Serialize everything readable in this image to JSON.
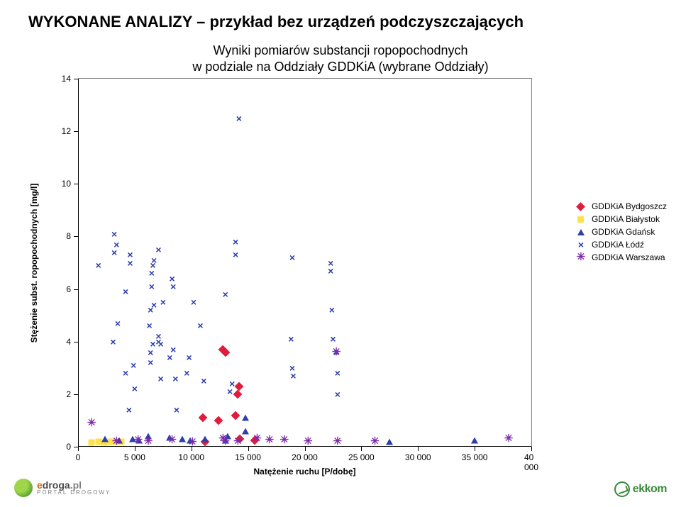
{
  "page_title": "WYKONANE ANALIZY – przykład bez urządzeń podczyszczających",
  "chart": {
    "type": "scatter",
    "title": "Wyniki pomiarów substancji ropopochodnych\nw podziale na Oddziały GDDKiA (wybrane Oddziały)",
    "xlabel": "Natężenie ruchu [P/dobę]",
    "ylabel": "Stężenie subst. ropopochodnych [mg/l]",
    "xlim": [
      0,
      40000
    ],
    "ylim": [
      0,
      14
    ],
    "xtick_step": 5000,
    "ytick_step": 2,
    "xtick_labels": [
      "0",
      "5 000",
      "10 000",
      "15 000",
      "20 000",
      "25 000",
      "30 000",
      "35 000",
      "40 000"
    ],
    "ytick_labels": [
      "0",
      "2",
      "4",
      "6",
      "8",
      "10",
      "12",
      "14"
    ],
    "background_color": "#ffffff",
    "border_color": "#808080",
    "axis_color": "#000000",
    "tick_fontsize": 12,
    "label_fontsize": 12,
    "title_fontsize": 18,
    "series": [
      {
        "name": "GDDKiA Bydgoszcz",
        "marker": "diamond",
        "color": "#e01b3c",
        "points": [
          [
            11000,
            1.1
          ],
          [
            11200,
            0.2
          ],
          [
            12400,
            1.0
          ],
          [
            12800,
            3.7
          ],
          [
            13000,
            3.6
          ],
          [
            13900,
            1.2
          ],
          [
            14100,
            2.0
          ],
          [
            14200,
            2.3
          ],
          [
            14300,
            0.3
          ],
          [
            15600,
            0.25
          ]
        ]
      },
      {
        "name": "GDDKiA Białystok",
        "marker": "square",
        "color": "#ffe24a",
        "points": [
          [
            1200,
            0.15
          ],
          [
            1800,
            0.18
          ],
          [
            2300,
            0.15
          ],
          [
            2900,
            0.2
          ],
          [
            3300,
            0.2
          ],
          [
            3800,
            0.2
          ]
        ]
      },
      {
        "name": "GDDKiA Gdańsk",
        "marker": "triangle",
        "color": "#2e3eaa",
        "points": [
          [
            2400,
            0.3
          ],
          [
            3600,
            0.25
          ],
          [
            4800,
            0.3
          ],
          [
            5400,
            0.25
          ],
          [
            6200,
            0.4
          ],
          [
            8100,
            0.35
          ],
          [
            9200,
            0.3
          ],
          [
            9900,
            0.25
          ],
          [
            11200,
            0.3
          ],
          [
            13000,
            0.25
          ],
          [
            13200,
            0.4
          ],
          [
            14800,
            1.1
          ],
          [
            14800,
            0.6
          ],
          [
            27500,
            0.2
          ],
          [
            35000,
            0.25
          ]
        ]
      },
      {
        "name": "GDDKiA Łódź",
        "marker": "x",
        "color": "#2e3eaa",
        "points": [
          [
            1800,
            6.9
          ],
          [
            3100,
            4.0
          ],
          [
            3200,
            7.4
          ],
          [
            3200,
            8.1
          ],
          [
            3400,
            7.7
          ],
          [
            3500,
            4.7
          ],
          [
            4200,
            2.8
          ],
          [
            4200,
            5.9
          ],
          [
            4500,
            1.4
          ],
          [
            4600,
            7.0
          ],
          [
            4600,
            7.3
          ],
          [
            4900,
            3.1
          ],
          [
            5000,
            2.2
          ],
          [
            6300,
            4.6
          ],
          [
            6400,
            3.2
          ],
          [
            6400,
            3.6
          ],
          [
            6400,
            5.2
          ],
          [
            6500,
            6.1
          ],
          [
            6500,
            6.6
          ],
          [
            6600,
            3.9
          ],
          [
            6600,
            6.9
          ],
          [
            6700,
            5.4
          ],
          [
            6700,
            7.1
          ],
          [
            7100,
            4.0
          ],
          [
            7100,
            4.2
          ],
          [
            7100,
            7.5
          ],
          [
            7300,
            2.6
          ],
          [
            7300,
            3.9
          ],
          [
            7500,
            5.5
          ],
          [
            8100,
            3.4
          ],
          [
            8300,
            6.4
          ],
          [
            8400,
            6.1
          ],
          [
            8400,
            3.7
          ],
          [
            8600,
            2.6
          ],
          [
            8700,
            1.4
          ],
          [
            9600,
            2.8
          ],
          [
            9800,
            3.4
          ],
          [
            10200,
            5.5
          ],
          [
            10800,
            4.6
          ],
          [
            11100,
            2.5
          ],
          [
            13000,
            5.8
          ],
          [
            13400,
            2.1
          ],
          [
            13600,
            2.4
          ],
          [
            13900,
            7.8
          ],
          [
            13900,
            7.3
          ],
          [
            14200,
            12.5
          ],
          [
            18800,
            4.1
          ],
          [
            18900,
            7.2
          ],
          [
            18900,
            3.0
          ],
          [
            19000,
            2.7
          ],
          [
            22300,
            7.0
          ],
          [
            22300,
            6.7
          ],
          [
            22400,
            5.2
          ],
          [
            22500,
            4.1
          ],
          [
            22800,
            3.6
          ],
          [
            22900,
            2.8
          ],
          [
            22900,
            2.0
          ]
        ]
      },
      {
        "name": "GDDKiA Warszawa",
        "marker": "asterisk",
        "color": "#7b2aa8",
        "points": [
          [
            1200,
            0.9
          ],
          [
            3400,
            0.2
          ],
          [
            5300,
            0.25
          ],
          [
            6200,
            0.2
          ],
          [
            8300,
            0.25
          ],
          [
            10100,
            0.15
          ],
          [
            12800,
            0.3
          ],
          [
            13000,
            0.2
          ],
          [
            14100,
            0.2
          ],
          [
            15800,
            0.3
          ],
          [
            16900,
            0.25
          ],
          [
            18200,
            0.25
          ],
          [
            20300,
            0.2
          ],
          [
            22800,
            3.6
          ],
          [
            22900,
            0.2
          ],
          [
            26200,
            0.2
          ],
          [
            38000,
            0.3
          ]
        ]
      }
    ]
  },
  "legend_title": null,
  "footer": {
    "left_logo_line1": "edroga.pl",
    "left_logo_line2": "PORTAL DROGOWY",
    "right_logo": "ekkom"
  },
  "colors": {
    "page_bg": "#ffffff",
    "title_text": "#000000"
  }
}
